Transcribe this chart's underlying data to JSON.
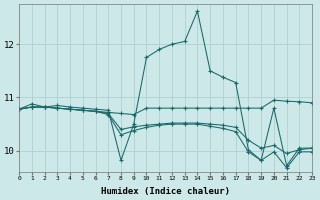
{
  "xlabel": "Humidex (Indice chaleur)",
  "bg_color": "#cce8e8",
  "grid_color": "#aacccc",
  "line_color": "#1a6868",
  "xlim": [
    0,
    23
  ],
  "ylim": [
    9.6,
    12.75
  ],
  "yticks": [
    10,
    11,
    12
  ],
  "xticks": [
    0,
    1,
    2,
    3,
    4,
    5,
    6,
    7,
    8,
    9,
    10,
    11,
    12,
    13,
    14,
    15,
    16,
    17,
    18,
    19,
    20,
    21,
    22,
    23
  ],
  "s1": [
    10.78,
    10.88,
    10.82,
    10.85,
    10.82,
    10.8,
    10.78,
    10.76,
    9.82,
    10.5,
    11.75,
    11.9,
    12.0,
    12.05,
    12.62,
    11.5,
    11.38,
    11.28,
    10.02,
    9.82,
    10.8,
    9.72,
    10.05,
    10.05
  ],
  "s2": [
    10.78,
    10.82,
    10.82,
    10.8,
    10.78,
    10.76,
    10.74,
    10.72,
    10.7,
    10.68,
    10.8,
    10.8,
    10.8,
    10.8,
    10.8,
    10.8,
    10.8,
    10.8,
    10.8,
    10.8,
    10.95,
    10.93,
    10.92,
    10.9
  ],
  "s3": [
    10.78,
    10.82,
    10.82,
    10.8,
    10.78,
    10.76,
    10.74,
    10.7,
    10.4,
    10.45,
    10.48,
    10.5,
    10.52,
    10.52,
    10.52,
    10.5,
    10.48,
    10.44,
    10.2,
    10.05,
    10.1,
    9.95,
    10.02,
    10.05
  ],
  "s4": [
    10.78,
    10.82,
    10.82,
    10.8,
    10.78,
    10.76,
    10.74,
    10.68,
    10.3,
    10.38,
    10.44,
    10.48,
    10.5,
    10.5,
    10.5,
    10.46,
    10.42,
    10.36,
    9.98,
    9.82,
    9.98,
    9.68,
    9.98,
    9.98
  ]
}
